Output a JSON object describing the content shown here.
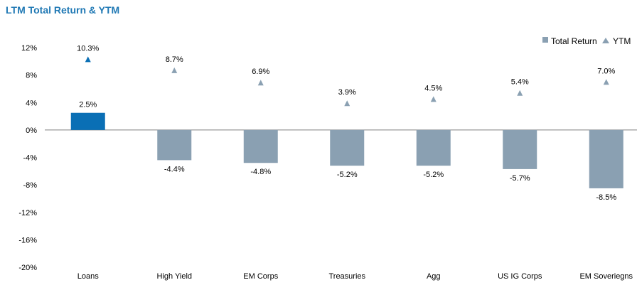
{
  "header": {
    "title": "LTM Total Return & YTM"
  },
  "legend": {
    "total_return": "Total Return",
    "ytm": "YTM"
  },
  "colors": {
    "highlight": "#0a6fb5",
    "bar": "#8aa0b2",
    "marker": "#8aa0b2",
    "title": "#1f78b4"
  },
  "chart_data": {
    "type": "bar",
    "title": "LTM Total Return & YTM",
    "categories": [
      "Loans",
      "High Yield",
      "EM Corps",
      "Treasuries",
      "Agg",
      "US IG Corps",
      "EM Soveriegns"
    ],
    "series": [
      {
        "name": "Total Return",
        "type": "bar",
        "values": [
          2.5,
          -4.4,
          -4.8,
          -5.2,
          -5.2,
          -5.7,
          -8.5
        ],
        "labels": [
          "2.5%",
          "-4.4%",
          "-4.8%",
          "-5.2%",
          "-5.2%",
          "-5.7%",
          "-8.5%"
        ]
      },
      {
        "name": "YTM",
        "type": "scatter",
        "marker": "triangle",
        "values": [
          10.3,
          8.7,
          6.9,
          3.9,
          4.5,
          5.4,
          7.0
        ],
        "labels": [
          "10.3%",
          "8.7%",
          "6.9%",
          "3.9%",
          "4.5%",
          "5.4%",
          "7.0%"
        ]
      }
    ],
    "ylim": [
      -20,
      12
    ],
    "yticks": [
      12,
      8,
      4,
      0,
      -4,
      -8,
      -12,
      -16,
      -20
    ],
    "ytick_labels": [
      "12%",
      "8%",
      "4%",
      "0%",
      "-4%",
      "-8%",
      "-12%",
      "-16%",
      "-20%"
    ],
    "xlabel": "",
    "ylabel": "",
    "grid": false,
    "legend_position": "top-right"
  }
}
